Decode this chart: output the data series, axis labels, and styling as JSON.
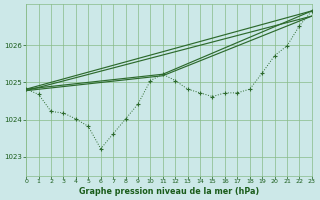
{
  "title": "Graphe pression niveau de la mer (hPa)",
  "background_color": "#cce8e8",
  "grid_color": "#88bb88",
  "line_color": "#2d6a2d",
  "text_color": "#1a5c1a",
  "xlim": [
    0,
    23
  ],
  "ylim": [
    1022.5,
    1027.1
  ],
  "yticks": [
    1023,
    1024,
    1025,
    1026
  ],
  "xticks": [
    0,
    1,
    2,
    3,
    4,
    5,
    6,
    7,
    8,
    9,
    10,
    11,
    12,
    13,
    14,
    15,
    16,
    17,
    18,
    19,
    20,
    21,
    22,
    23
  ],
  "main_x": [
    0,
    1,
    2,
    3,
    4,
    5,
    6,
    7,
    8,
    9,
    10,
    11,
    12,
    13,
    14,
    15,
    16,
    17,
    18,
    19,
    20,
    21,
    22,
    23
  ],
  "main_y": [
    1024.82,
    1024.68,
    1024.22,
    1024.18,
    1024.02,
    1023.82,
    1023.22,
    1023.62,
    1024.02,
    1024.42,
    1025.05,
    1025.22,
    1025.05,
    1024.82,
    1024.72,
    1024.62,
    1024.72,
    1024.72,
    1024.82,
    1025.25,
    1025.72,
    1025.98,
    1026.52,
    1026.92
  ],
  "trend_lines": [
    {
      "x": [
        0,
        23
      ],
      "y": [
        1024.82,
        1026.92
      ]
    },
    {
      "x": [
        0,
        23
      ],
      "y": [
        1024.78,
        1026.78
      ]
    },
    {
      "x": [
        0,
        11,
        23
      ],
      "y": [
        1024.82,
        1025.22,
        1026.92
      ]
    },
    {
      "x": [
        0,
        11,
        23
      ],
      "y": [
        1024.78,
        1025.18,
        1026.78
      ]
    }
  ]
}
